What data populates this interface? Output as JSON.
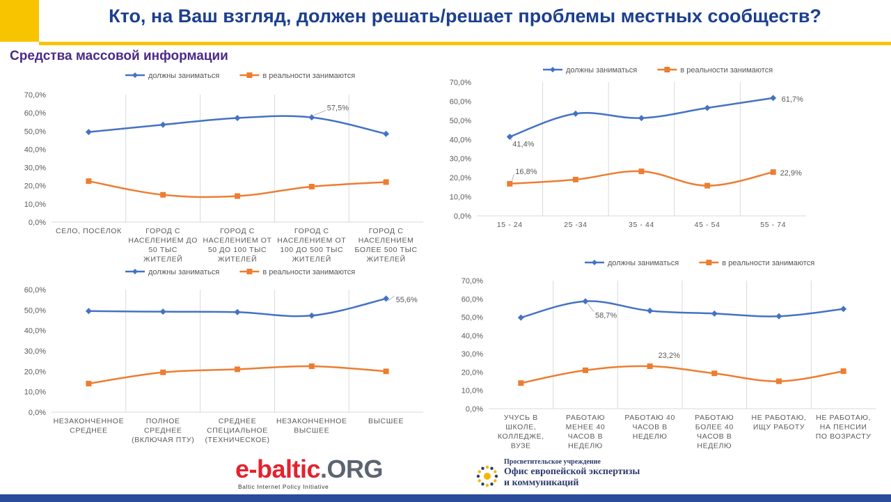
{
  "header": {
    "title": "Кто, на Ваш взгляд, должен решать/решает проблемы местных сообществ?",
    "subtitle": "Средства массовой информации"
  },
  "colors": {
    "blue": "#4472c4",
    "orange": "#ed7d31",
    "accent": "#f8c400",
    "navy": "#2b4c9b"
  },
  "chart_data": [
    {
      "id": "settlement",
      "type": "line",
      "categories": [
        [
          "СЕЛО, ПОСЁЛОК"
        ],
        [
          "ГОРОД С",
          "НАСЕЛЕНИЕМ ДО",
          "50 ТЫС",
          "ЖИТЕЛЕЙ"
        ],
        [
          "ГОРОД С",
          "НАСЕЛЕНИЕМ ОТ",
          "50 ДО 100 ТЫС",
          "ЖИТЕЛЕЙ"
        ],
        [
          "ГОРОД С",
          "НАСЕЛЕНИЕМ ОТ",
          "100 ДО 500 ТЫС",
          "ЖИТЕЛЕЙ"
        ],
        [
          "ГОРОД С",
          "НАСЕЛЕНИЕМ",
          "БОЛЕЕ 500 ТЫС",
          "ЖИТЕЛЕЙ"
        ]
      ],
      "series": [
        {
          "name": "должны заниматься",
          "values": [
            49.5,
            53.5,
            57.2,
            57.5,
            48.5
          ]
        },
        {
          "name": "в реальности занимаются",
          "values": [
            22.5,
            15.0,
            14.3,
            19.5,
            22.0
          ]
        }
      ],
      "yticks": [
        "0,0%",
        "10,0%",
        "20,0%",
        "30,0%",
        "40,0%",
        "50,0%",
        "60,0%",
        "70,0%"
      ],
      "ylim": [
        0,
        70
      ],
      "labels": [
        {
          "series": 0,
          "index": 3,
          "text": "57,5%"
        }
      ],
      "legend": "top"
    },
    {
      "id": "age",
      "type": "line",
      "categories": [
        [
          "15 - 24"
        ],
        [
          "25 -34"
        ],
        [
          "35 - 44"
        ],
        [
          "45 - 54"
        ],
        [
          "55 - 74"
        ]
      ],
      "series": [
        {
          "name": "должны заниматься",
          "values": [
            41.4,
            53.5,
            51.2,
            56.5,
            61.7
          ]
        },
        {
          "name": "в реальности занимаются",
          "values": [
            16.8,
            19.0,
            23.3,
            15.8,
            22.9
          ]
        }
      ],
      "yticks": [
        "0,0%",
        "10,0%",
        "20,0%",
        "30,0%",
        "40,0%",
        "50,0%",
        "60,0%",
        "70,0%"
      ],
      "ylim": [
        0,
        70
      ],
      "labels": [
        {
          "series": 0,
          "index": 0,
          "text": "41,4%"
        },
        {
          "series": 0,
          "index": 4,
          "text": "61,7%"
        },
        {
          "series": 1,
          "index": 0,
          "text": "16,8%"
        },
        {
          "series": 1,
          "index": 4,
          "text": "22,9%"
        }
      ],
      "legend": "top"
    },
    {
      "id": "education",
      "type": "line",
      "categories": [
        [
          "НЕЗАКОНЧЕННОЕ",
          "СРЕДНЕЕ"
        ],
        [
          "ПОЛНОЕ",
          "СРЕДНЕЕ",
          "(ВКЛЮЧАЯ ПТУ)"
        ],
        [
          "СРЕДНЕЕ",
          "СПЕЦИАЛЬНОЕ",
          "(ТЕХНИЧЕСКОЕ)"
        ],
        [
          "НЕЗАКОНЧЕННОЕ",
          "ВЫСШЕЕ"
        ],
        [
          "ВЫСШЕЕ"
        ]
      ],
      "series": [
        {
          "name": "должны заниматься",
          "values": [
            49.5,
            49.2,
            49.0,
            47.3,
            55.6
          ]
        },
        {
          "name": "в реальности занимаются",
          "values": [
            14.0,
            19.5,
            21.0,
            22.5,
            20.0
          ]
        }
      ],
      "yticks": [
        "0,0%",
        "10,0%",
        "20,0%",
        "30,0%",
        "40,0%",
        "50,0%",
        "60,0%"
      ],
      "ylim": [
        0,
        60
      ],
      "labels": [
        {
          "series": 0,
          "index": 4,
          "text": "55,6%"
        }
      ],
      "legend": "top"
    },
    {
      "id": "employment",
      "type": "line",
      "categories": [
        [
          "УЧУСЬ В",
          "ШКОЛЕ,",
          "КОЛЛЕДЖЕ,",
          "ВУЗЕ"
        ],
        [
          "РАБОТАЮ",
          "МЕНЕЕ 40",
          "ЧАСОВ В",
          "НЕДЕЛЮ"
        ],
        [
          "РАБОТАЮ 40",
          "ЧАСОВ В",
          "НЕДЕЛЮ"
        ],
        [
          "РАБОТАЮ",
          "БОЛЕЕ 40",
          "ЧАСОВ В",
          "НЕДЕЛЮ"
        ],
        [
          "НЕ РАБОТАЮ,",
          "ИЩУ РАБОТУ"
        ],
        [
          "НЕ РАБОТАЮ,",
          "НА ПЕНСИИ",
          "ПО ВОЗРАСТУ"
        ]
      ],
      "series": [
        {
          "name": "должны заниматься",
          "values": [
            49.8,
            58.7,
            53.5,
            52.0,
            50.5,
            54.5
          ]
        },
        {
          "name": "в реальности занимаются",
          "values": [
            14.0,
            21.0,
            23.2,
            19.3,
            15.0,
            20.5
          ]
        }
      ],
      "yticks": [
        "0,0%",
        "10,0%",
        "20,0%",
        "30,0%",
        "40,0%",
        "50,0%",
        "60,0%",
        "70,0%"
      ],
      "ylim": [
        0,
        70
      ],
      "labels": [
        {
          "series": 0,
          "index": 1,
          "text": "58,7%"
        },
        {
          "series": 1,
          "index": 2,
          "text": "23,2%"
        }
      ],
      "legend": "top"
    }
  ],
  "logos": {
    "ebaltic_main": "e-baltic",
    "ebaltic_org": ".ORG",
    "ebaltic_tagline": "Baltic Internet Policy Initiative",
    "office_small": "Просветительское учреждение",
    "office_line1": "Офис европейской экспертизы",
    "office_line2": "и коммуникаций"
  }
}
